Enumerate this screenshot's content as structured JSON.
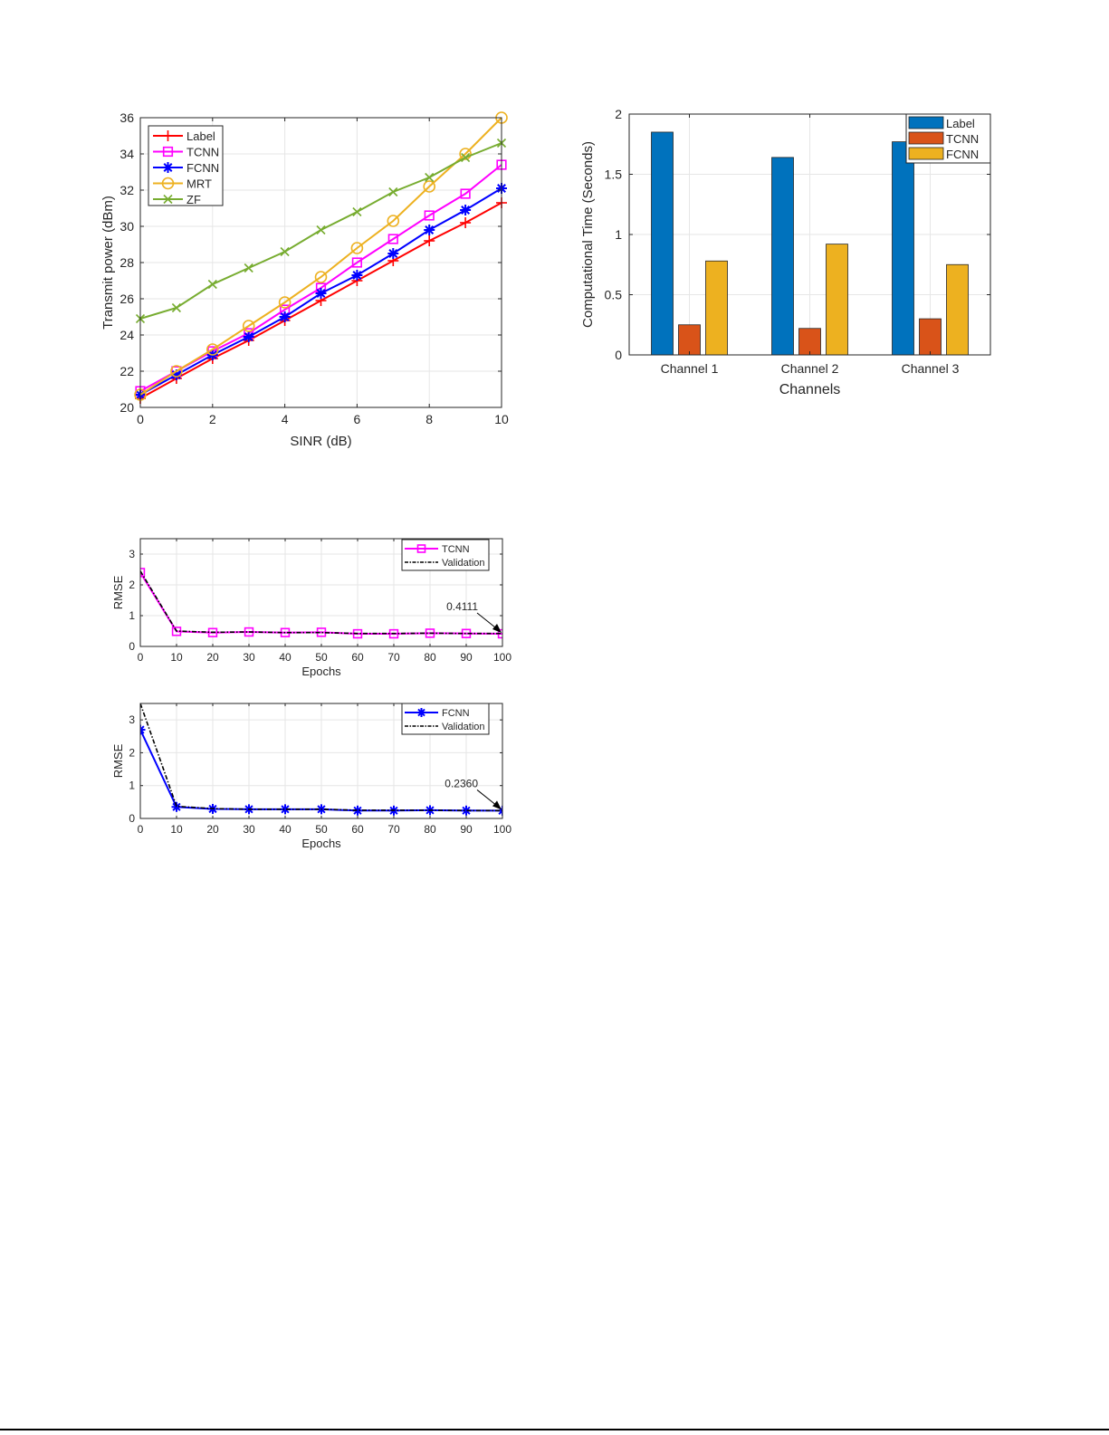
{
  "chart_data": [
    {
      "type": "line",
      "title": "",
      "xlabel": "SINR (dB)",
      "ylabel": "Transmit power (dBm)",
      "xlim": [
        0,
        10
      ],
      "ylim": [
        20,
        36
      ],
      "xticks": [
        "0",
        "2",
        "4",
        "6",
        "8",
        "10"
      ],
      "yticks": [
        "20",
        "22",
        "24",
        "26",
        "28",
        "30",
        "32",
        "34",
        "36"
      ],
      "grid": true,
      "legend_position": "upper-left",
      "x": [
        0,
        1,
        2,
        3,
        4,
        5,
        6,
        7,
        8,
        9,
        10
      ],
      "series": [
        {
          "name": "Label",
          "color": "#ff0000",
          "marker": "plus",
          "values": [
            20.5,
            21.6,
            22.7,
            23.7,
            24.8,
            25.9,
            27.0,
            28.1,
            29.2,
            30.2,
            31.3
          ]
        },
        {
          "name": "TCNN",
          "color": "#ff00ff",
          "marker": "square",
          "values": [
            20.9,
            22.0,
            23.1,
            24.1,
            25.4,
            26.6,
            28.0,
            29.3,
            30.6,
            31.8,
            33.4
          ]
        },
        {
          "name": "FCNN",
          "color": "#0000ff",
          "marker": "asterisk",
          "values": [
            20.7,
            21.8,
            22.9,
            23.9,
            25.0,
            26.3,
            27.3,
            28.5,
            29.8,
            30.9,
            32.1
          ]
        },
        {
          "name": "MRT",
          "color": "#edb120",
          "marker": "circle",
          "values": [
            20.7,
            22.0,
            23.2,
            24.5,
            25.8,
            27.2,
            28.8,
            30.3,
            32.2,
            34.0,
            36.0
          ]
        },
        {
          "name": "ZF",
          "color": "#77ac30",
          "marker": "x",
          "values": [
            24.9,
            25.5,
            26.8,
            27.7,
            28.6,
            29.8,
            30.8,
            31.9,
            32.7,
            33.8,
            34.6
          ]
        }
      ]
    },
    {
      "type": "bar",
      "title": "",
      "xlabel": "Channels",
      "ylabel": "Computational Time (Seconds)",
      "ylim": [
        0,
        2
      ],
      "yticks": [
        "0",
        "0.5",
        "1",
        "1.5",
        "2"
      ],
      "grid": true,
      "legend_position": "upper-right",
      "categories": [
        "Channel 1",
        "Channel 2",
        "Channel 3"
      ],
      "series": [
        {
          "name": "Label",
          "color": "#0072bd",
          "values": [
            1.85,
            1.64,
            1.77
          ]
        },
        {
          "name": "TCNN",
          "color": "#d95319",
          "values": [
            0.25,
            0.22,
            0.3
          ]
        },
        {
          "name": "FCNN",
          "color": "#edb120",
          "values": [
            0.78,
            0.92,
            0.75
          ]
        }
      ]
    },
    {
      "type": "line",
      "title": "",
      "xlabel": "Epochs",
      "ylabel": "RMSE",
      "xlim": [
        0,
        100
      ],
      "ylim": [
        0,
        3.5
      ],
      "xticks": [
        "0",
        "10",
        "20",
        "30",
        "40",
        "50",
        "60",
        "70",
        "80",
        "90",
        "100"
      ],
      "yticks": [
        "0",
        "1",
        "2",
        "3"
      ],
      "grid": true,
      "legend_position": "upper-right",
      "x": [
        0,
        10,
        20,
        30,
        40,
        50,
        60,
        70,
        80,
        90,
        100
      ],
      "series": [
        {
          "name": "TCNN",
          "color": "#ff00ff",
          "marker": "square",
          "values": [
            2.4,
            0.49,
            0.45,
            0.47,
            0.45,
            0.46,
            0.41,
            0.41,
            0.43,
            0.42,
            0.4111
          ]
        },
        {
          "name": "Validation",
          "color": "#000000",
          "style": "dash-dot",
          "values": [
            2.45,
            0.5,
            0.46,
            0.47,
            0.45,
            0.45,
            0.42,
            0.42,
            0.43,
            0.42,
            0.42
          ]
        }
      ],
      "annotations": [
        {
          "text": "0.4111",
          "x": 100,
          "y": 0.4111
        }
      ]
    },
    {
      "type": "line",
      "title": "",
      "xlabel": "Epochs",
      "ylabel": "RMSE",
      "xlim": [
        0,
        100
      ],
      "ylim": [
        0,
        3.5
      ],
      "xticks": [
        "0",
        "10",
        "20",
        "30",
        "40",
        "50",
        "60",
        "70",
        "80",
        "90",
        "100"
      ],
      "yticks": [
        "0",
        "1",
        "2",
        "3"
      ],
      "grid": true,
      "legend_position": "upper-right",
      "x": [
        0,
        10,
        20,
        30,
        40,
        50,
        60,
        70,
        80,
        90,
        100
      ],
      "series": [
        {
          "name": "FCNN",
          "color": "#0000ff",
          "marker": "asterisk",
          "values": [
            2.7,
            0.35,
            0.29,
            0.28,
            0.28,
            0.28,
            0.24,
            0.24,
            0.25,
            0.24,
            0.236
          ]
        },
        {
          "name": "Validation",
          "color": "#000000",
          "style": "dash-dot",
          "values": [
            3.5,
            0.37,
            0.3,
            0.28,
            0.28,
            0.28,
            0.25,
            0.25,
            0.25,
            0.24,
            0.24
          ]
        }
      ],
      "annotations": [
        {
          "text": "0.2360",
          "x": 100,
          "y": 0.236
        }
      ]
    }
  ]
}
